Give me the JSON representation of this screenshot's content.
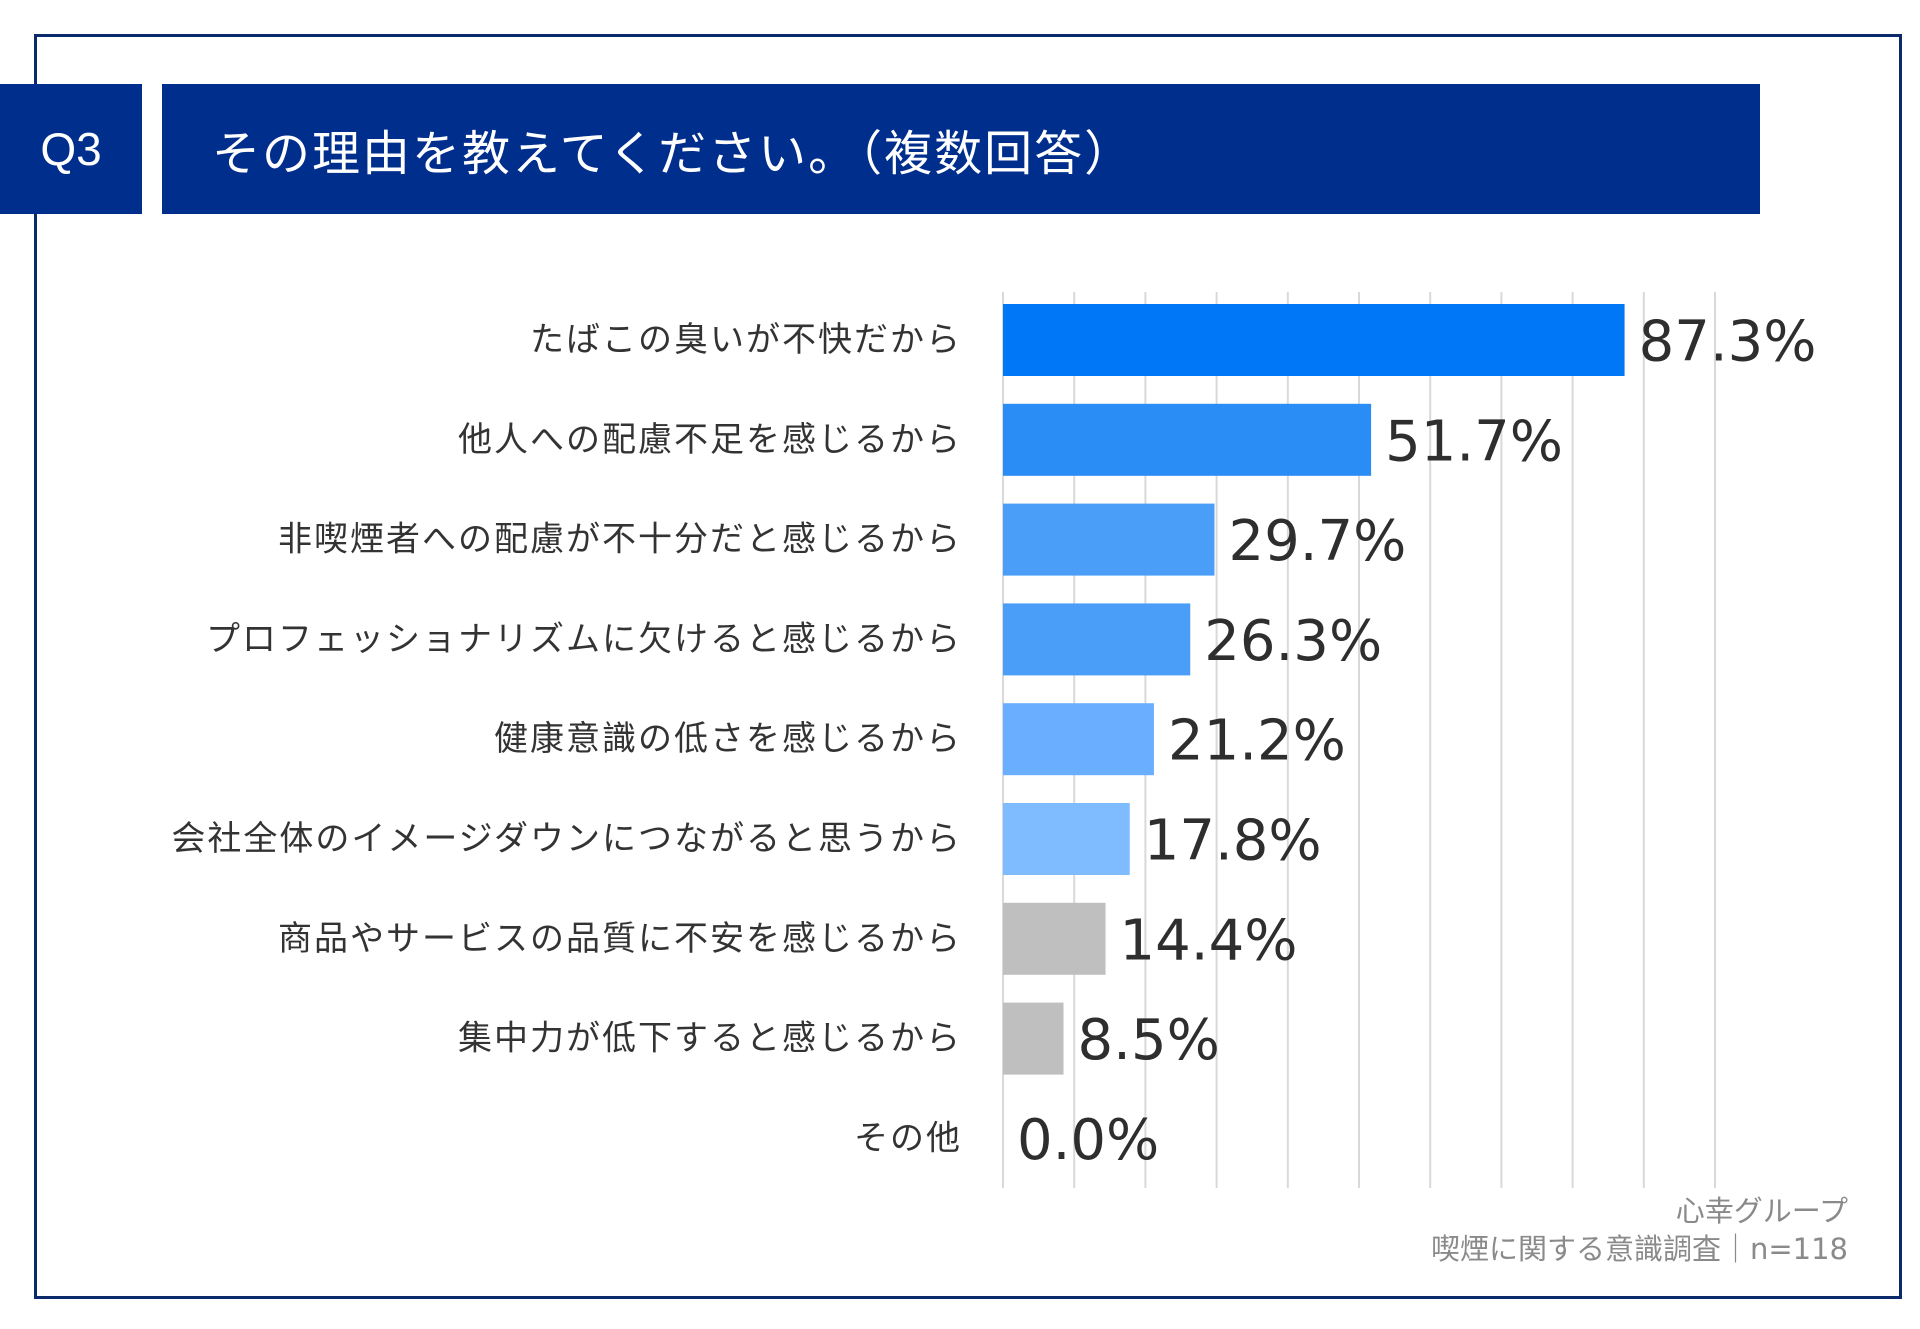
{
  "header": {
    "question_no": "Q3",
    "title": "その理由を教えてください。（複数回答）"
  },
  "source": {
    "org": "心幸グループ",
    "survey": "喫煙に関する意識調査｜n=118"
  },
  "chart_data": {
    "type": "bar",
    "orientation": "horizontal",
    "categories": [
      "たばこの臭いが不快だから",
      "他人への配慮不足を感じるから",
      "非喫煙者への配慮が不十分だと感じるから",
      "プロフェッショナリズムに欠けると感じるから",
      "健康意識の低さを感じるから",
      "会社全体のイメージダウンにつながると思うから",
      "商品やサービスの品質に不安を感じるから",
      "集中力が低下すると感じるから",
      "その他"
    ],
    "values": [
      87.3,
      51.7,
      29.7,
      26.3,
      21.2,
      17.8,
      14.4,
      8.5,
      0.0
    ],
    "value_labels": [
      "87.3%",
      "51.7%",
      "29.7%",
      "26.3%",
      "21.2%",
      "17.8%",
      "14.4%",
      "8.5%",
      "0.0%"
    ],
    "bar_colors": [
      "#0077f7",
      "#2a8cf5",
      "#4a9ef7",
      "#4a9ef7",
      "#6aafff",
      "#7fbcff",
      "#bfbfbf",
      "#bfbfbf",
      "#bfbfbf"
    ],
    "xlim": [
      0,
      100
    ],
    "grid": true,
    "gridline_color": "#d9d9d9"
  }
}
